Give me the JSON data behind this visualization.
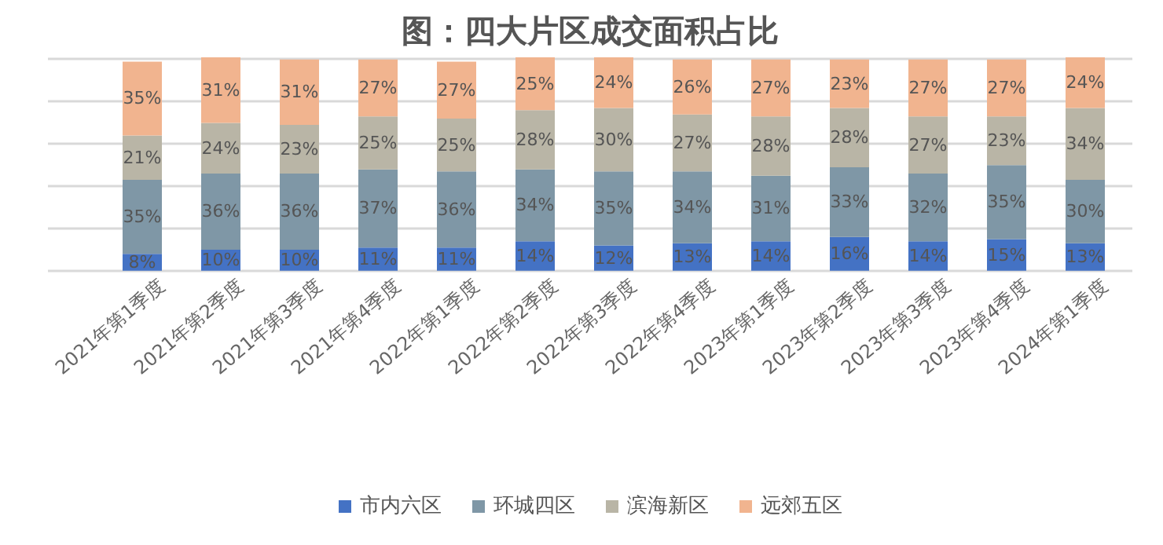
{
  "chart_data": {
    "type": "bar",
    "stacked": true,
    "title": "图：四大片区成交面积占比",
    "categories": [
      "2021年第1季度",
      "2021年第2季度",
      "2021年第3季度",
      "2021年第4季度",
      "2022年第1季度",
      "2022年第2季度",
      "2022年第3季度",
      "2022年第4季度",
      "2023年第1季度",
      "2023年第2季度",
      "2023年第3季度",
      "2023年第4季度",
      "2024年第1季度"
    ],
    "series": [
      {
        "name": "市内六区",
        "color": "#4472c4",
        "values": [
          8,
          10,
          10,
          11,
          11,
          14,
          12,
          13,
          14,
          16,
          14,
          15,
          13
        ],
        "value_labels": [
          "8%",
          "10%",
          "10%",
          "11%",
          "11%",
          "14%",
          "12%",
          "13%",
          "14%",
          "16%",
          "14%",
          "15%",
          "13%"
        ]
      },
      {
        "name": "环城四区",
        "color": "#7f97a6",
        "values": [
          35,
          36,
          36,
          37,
          36,
          34,
          35,
          34,
          31,
          33,
          32,
          35,
          30
        ],
        "value_labels": [
          "35%",
          "36%",
          "36%",
          "37%",
          "36%",
          "34%",
          "35%",
          "34%",
          "31%",
          "33%",
          "32%",
          "35%",
          "30%"
        ]
      },
      {
        "name": "滨海新区",
        "color": "#b9b5a6",
        "values": [
          21,
          24,
          23,
          25,
          25,
          28,
          30,
          27,
          28,
          28,
          27,
          23,
          34
        ],
        "value_labels": [
          "21%",
          "24%",
          "23%",
          "25%",
          "25%",
          "28%",
          "30%",
          "27%",
          "28%",
          "28%",
          "27%",
          "23%",
          "34%"
        ]
      },
      {
        "name": "远郊五区",
        "color": "#f1b48f",
        "values": [
          35,
          31,
          31,
          27,
          27,
          25,
          24,
          26,
          27,
          23,
          27,
          27,
          24
        ],
        "value_labels": [
          "35%",
          "31%",
          "31%",
          "27%",
          "27%",
          "25%",
          "24%",
          "26%",
          "27%",
          "23%",
          "27%",
          "27%",
          "24%"
        ]
      }
    ],
    "tick_labels": "x",
    "grid": "y",
    "legend": "bottom"
  }
}
